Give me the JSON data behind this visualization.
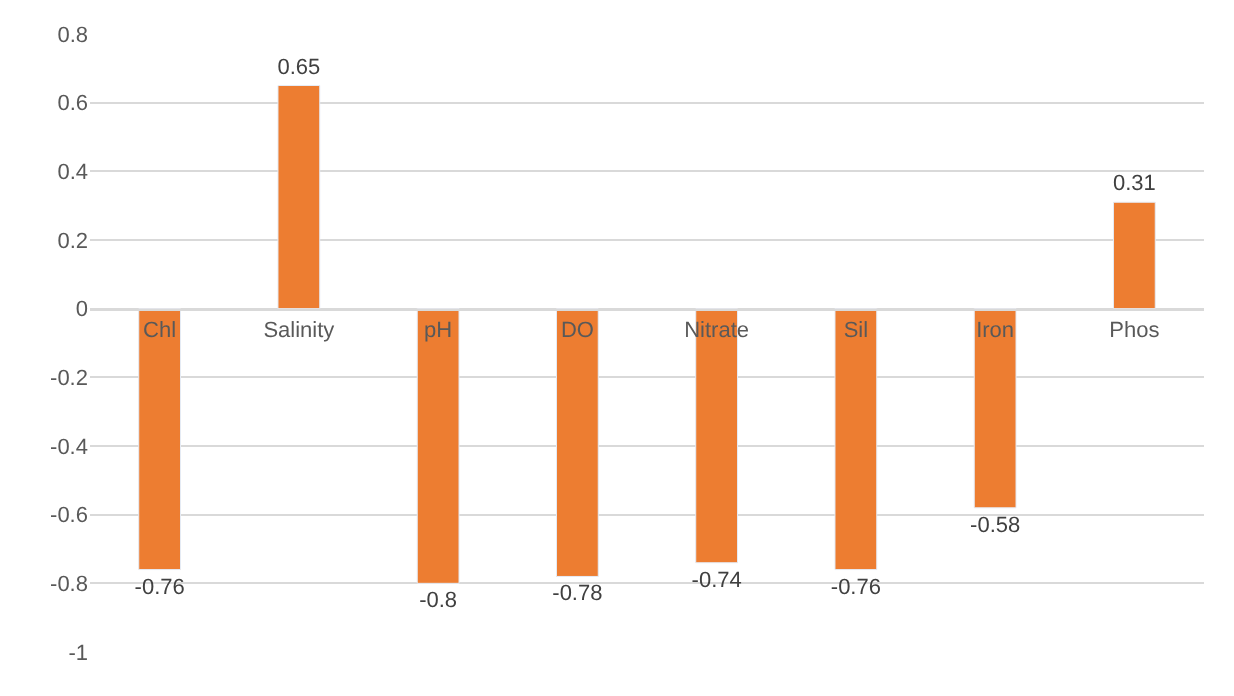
{
  "chart_data": {
    "type": "bar",
    "categories": [
      "Chl",
      "Salinity",
      "pH",
      "DO",
      "Nitrate",
      "Sil",
      "Iron",
      "Phos"
    ],
    "values": [
      -0.76,
      0.65,
      -0.8,
      -0.78,
      -0.74,
      -0.76,
      -0.58,
      0.31
    ],
    "color": "#ed7d31",
    "ylim": [
      -1,
      0.8
    ],
    "yticks": [
      -1,
      -0.8,
      -0.6,
      -0.4,
      -0.2,
      0,
      0.2,
      0.4,
      0.6,
      0.8
    ],
    "grid": "y",
    "data_labels": true
  }
}
